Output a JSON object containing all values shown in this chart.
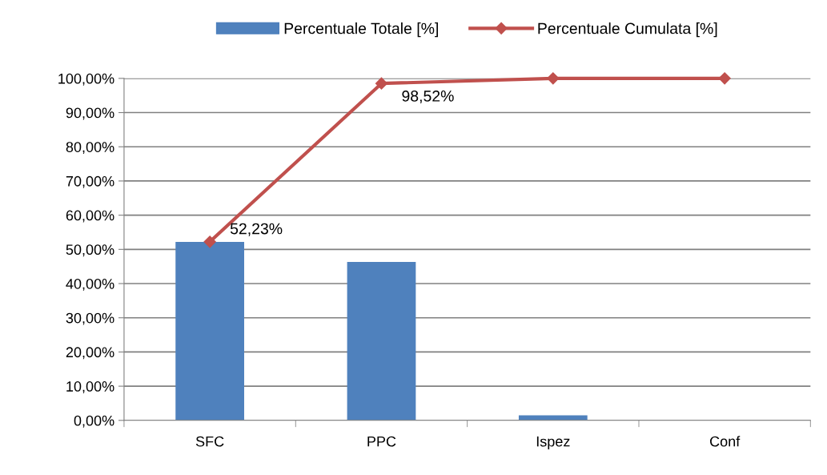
{
  "chart_data": {
    "type": "bar",
    "categories": [
      "SFC",
      "PPC",
      "Ispez",
      "Conf"
    ],
    "series": [
      {
        "name": "Percentuale Totale [%]",
        "color": "#4f81bd",
        "values": [
          52.2,
          46.3,
          1.5,
          0
        ]
      },
      {
        "name": "Percentuale Cumulata [%]",
        "type": "line",
        "color": "#c0504d",
        "marker": "diamond",
        "values": [
          52.23,
          98.52,
          100,
          100
        ],
        "value_labels": [
          "52,23%",
          "98,52%",
          null,
          null
        ]
      }
    ],
    "ylim": [
      0,
      100
    ],
    "yticks": [
      {
        "value": 0,
        "label": "0,00%"
      },
      {
        "value": 10,
        "label": "10,00%"
      },
      {
        "value": 20,
        "label": "20,00%"
      },
      {
        "value": 30,
        "label": "30,00%"
      },
      {
        "value": 40,
        "label": "40,00%"
      },
      {
        "value": 50,
        "label": "50,00%"
      },
      {
        "value": 60,
        "label": "60,00%"
      },
      {
        "value": 70,
        "label": "70,00%"
      },
      {
        "value": 80,
        "label": "80,00%"
      },
      {
        "value": 90,
        "label": "90,00%"
      },
      {
        "value": 100,
        "label": "100,00%"
      }
    ],
    "grid": "y",
    "legend": "top"
  }
}
